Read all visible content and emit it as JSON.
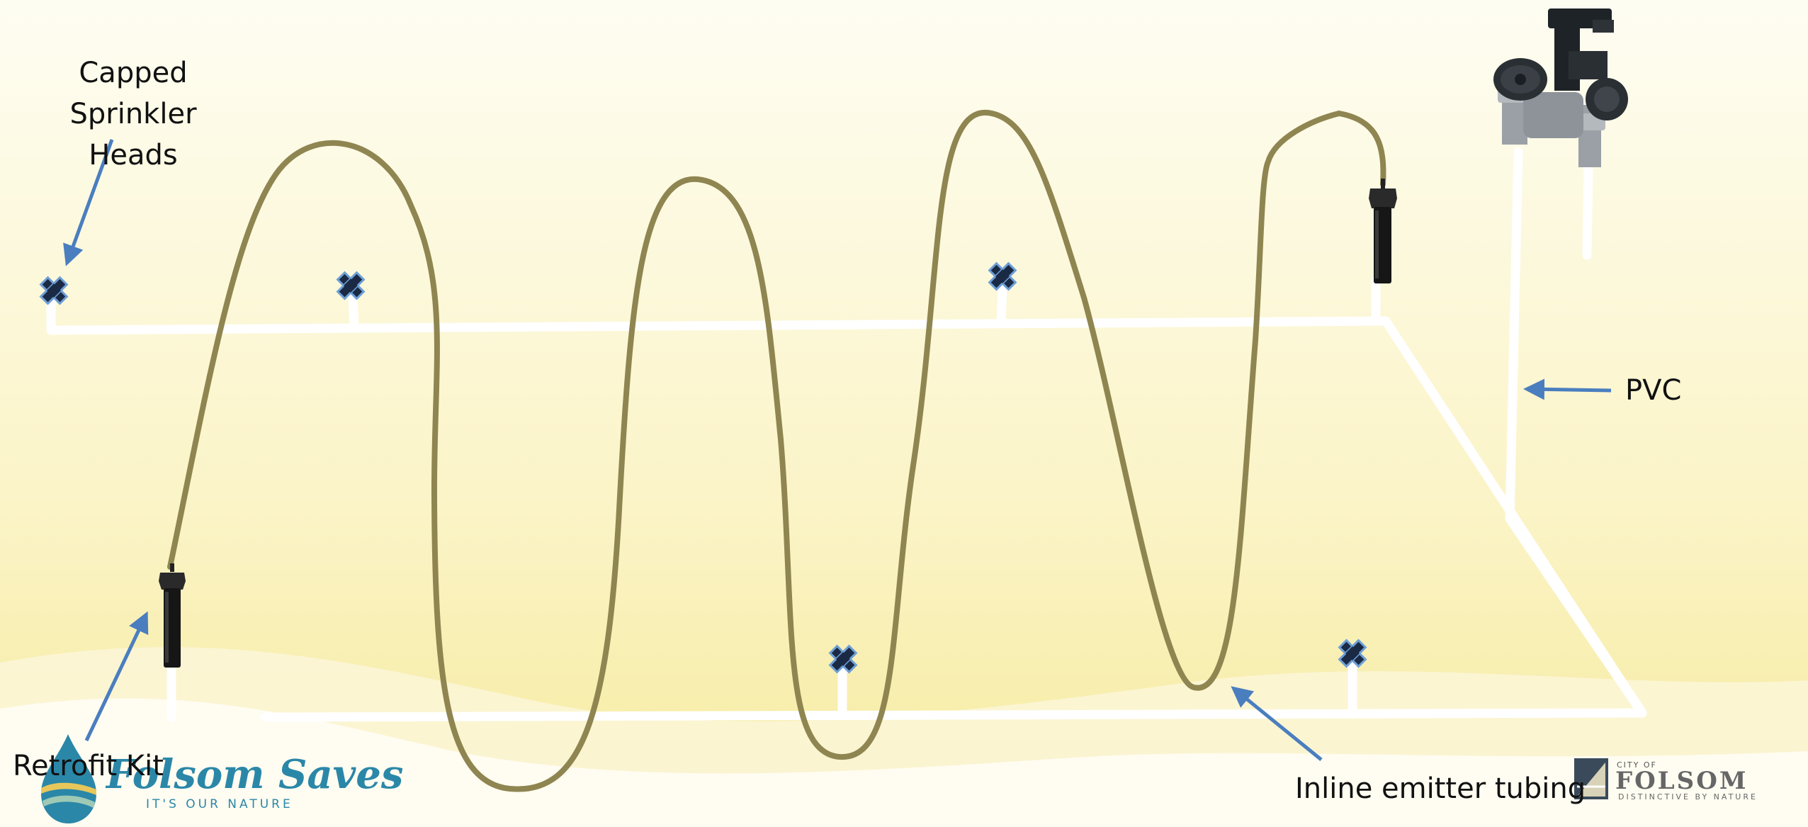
{
  "labels": {
    "capped_line1": "Capped Sprinkler",
    "capped_line2": "Heads",
    "pvc": "PVC",
    "retrofit": "Retrofit Kit",
    "inline": "Inline emitter tubing"
  },
  "logos": {
    "folsom_saves_title": "Folsom Saves",
    "folsom_saves_tagline": "IT'S OUR NATURE",
    "city_small": "CITY OF",
    "city_name": "FOLSOM",
    "city_tagline": "DISTINCTIVE BY NATURE"
  },
  "colors": {
    "background_top": "#fefdf0",
    "background_bottom": "#f8eda6",
    "pipe": "#ffffff",
    "tubing": "#8f8551",
    "arrow": "#4a7ebf",
    "cap_fill": "#1b2a44",
    "cap_outline": "#6e9fd6",
    "logo_blue": "#2b87a8",
    "logo_gold": "#e8c75a"
  }
}
